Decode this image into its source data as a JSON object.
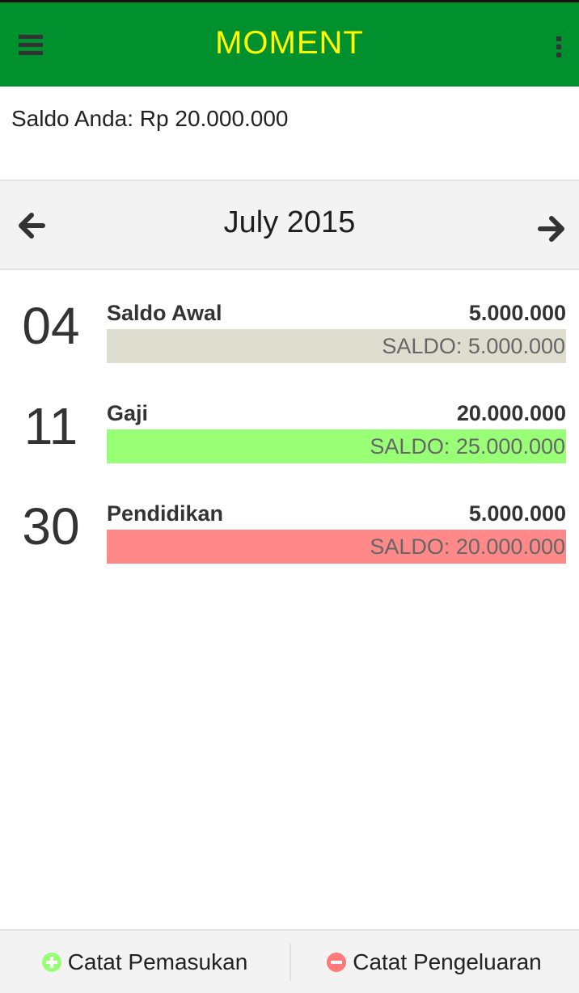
{
  "app": {
    "title": "MOMENT"
  },
  "colors": {
    "header": "#00902e",
    "title": "#ffff00",
    "income_icon": "#99ff77",
    "expense_icon": "#ff7a7a"
  },
  "icons": {
    "menu": "hamburger-menu",
    "overflow": "vertical-dots",
    "prev": "arrow-left",
    "next": "arrow-right"
  },
  "balance": {
    "text": "Saldo Anda: Rp 20.000.000"
  },
  "month": {
    "label": "July 2015"
  },
  "transactions": [
    {
      "day": "04",
      "name": "Saldo Awal",
      "amount": "5.000.000",
      "saldo": "SALDO: 5.000.000",
      "bar_color": "#deded0"
    },
    {
      "day": "11",
      "name": "Gaji",
      "amount": "20.000.000",
      "saldo": "SALDO: 25.000.000",
      "bar_color": "#99ff77"
    },
    {
      "day": "30",
      "name": "Pendidikan",
      "amount": "5.000.000",
      "saldo": "SALDO: 20.000.000",
      "bar_color": "#ff8888"
    }
  ],
  "actions": {
    "income_label": "Catat Pemasukan",
    "expense_label": "Catat Pengeluaran"
  }
}
